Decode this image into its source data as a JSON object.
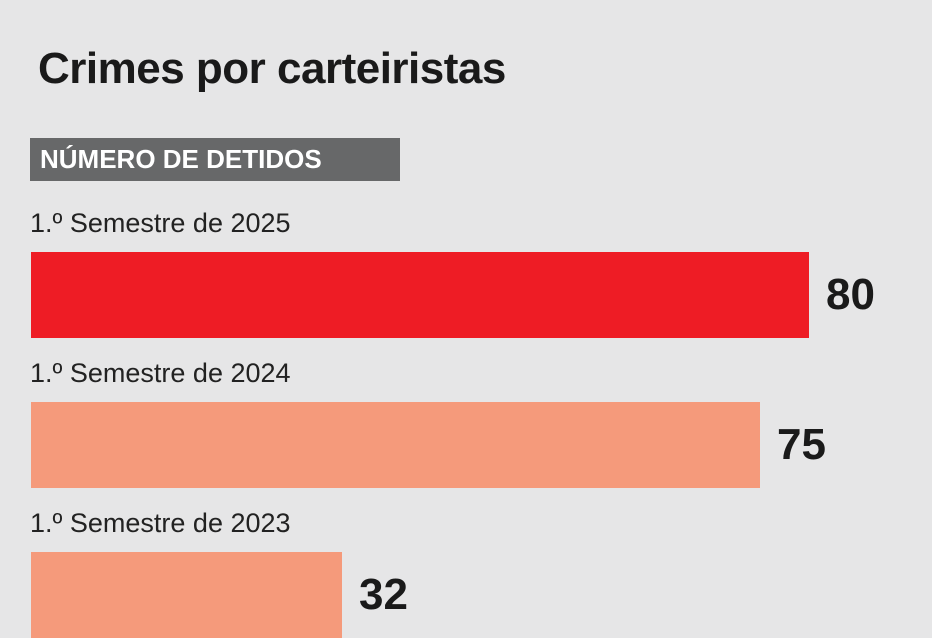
{
  "chart_data": {
    "type": "bar",
    "orientation": "horizontal",
    "title": "Crimes por carteiristas",
    "subtitle": "NÚMERO DE DETIDOS",
    "categories": [
      "1.º Semestre de 2025",
      "1.º Semestre de 2024",
      "1.º Semestre de 2023"
    ],
    "values": [
      80,
      75,
      32
    ],
    "value_labels": [
      "80",
      "75",
      "32"
    ],
    "bar_colors": [
      "#ee1c25",
      "#f59a7b",
      "#f59a7b"
    ],
    "xlim": [
      0,
      80
    ],
    "grid": false
  },
  "colors": {
    "background": "#e6e6e7",
    "subtitle_band": "#676869",
    "highlight": "#ee1c25",
    "muted": "#f59a7b"
  }
}
